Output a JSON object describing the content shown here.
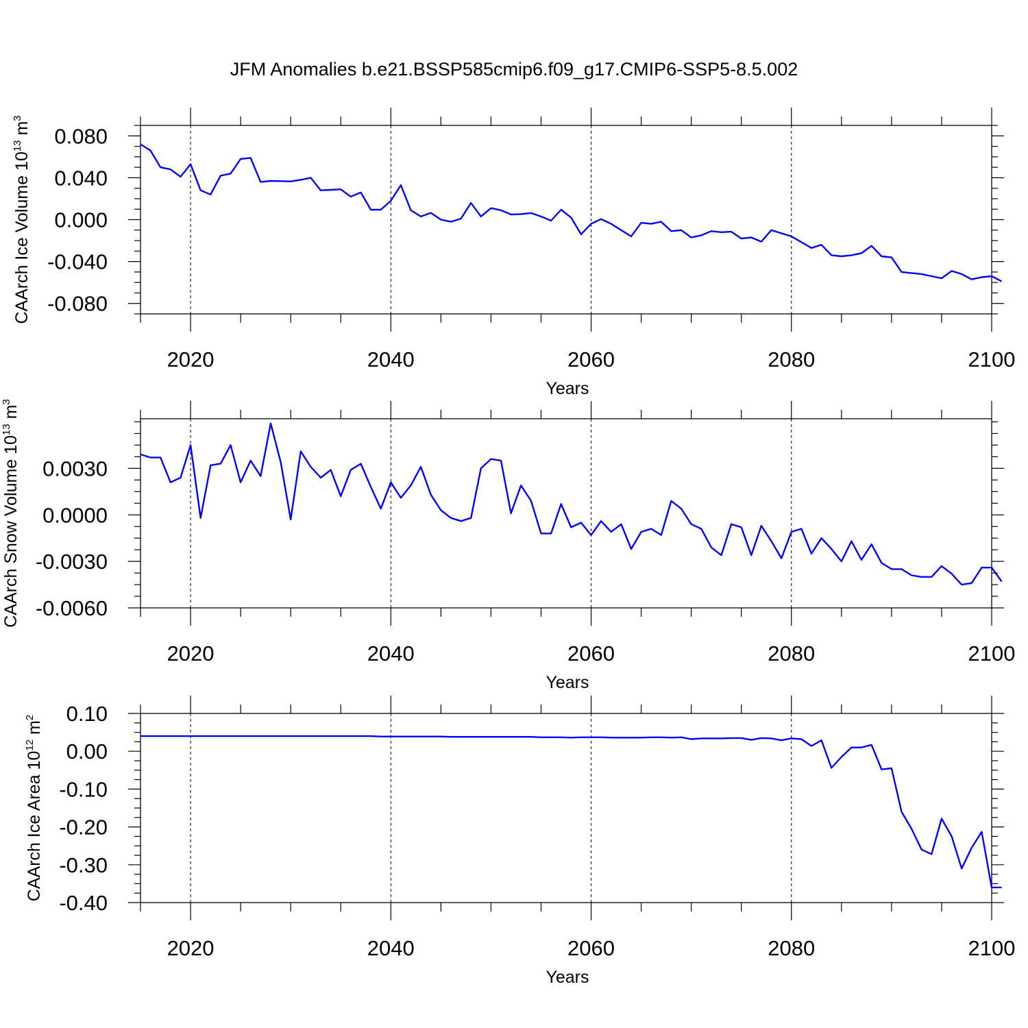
{
  "title": "JFM Anomalies b.e21.BSSP585cmip6.f09_g17.CMIP6-SSP5-8.5.002",
  "line_color": "#0000ff",
  "chart_data": [
    {
      "type": "line",
      "ylabel": {
        "main": "CAArch Ice Volume 10",
        "exp": "13",
        "unit": "m",
        "unit_exp": "3"
      },
      "xlabel": "Years",
      "xlim": [
        2015,
        2100
      ],
      "ylim": [
        -0.09,
        0.09
      ],
      "xticks": [
        2020,
        2040,
        2060,
        2080,
        2100
      ],
      "xtick_labels": [
        "2020",
        "2040",
        "2060",
        "2080",
        "2100"
      ],
      "yticks": [
        -0.08,
        -0.04,
        0.0,
        0.04,
        0.08
      ],
      "ytick_labels": [
        "-0.080",
        "-0.040",
        "0.000",
        "0.040",
        "0.080"
      ],
      "grid": "dashed vertical at major x ticks",
      "x_start": 2015,
      "values": [
        0.072,
        0.066,
        0.05,
        0.048,
        0.041,
        0.053,
        0.028,
        0.024,
        0.042,
        0.044,
        0.058,
        0.059,
        0.036,
        0.037,
        0.0368,
        0.0365,
        0.038,
        0.04,
        0.028,
        0.0285,
        0.029,
        0.022,
        0.026,
        0.0095,
        0.0095,
        0.018,
        0.033,
        0.009,
        0.003,
        0.0065,
        0.0,
        -0.002,
        0.001,
        0.016,
        0.003,
        0.011,
        0.009,
        0.005,
        0.0053,
        0.0063,
        0.003,
        -0.001,
        0.0095,
        0.002,
        -0.014,
        -0.004,
        0.0005,
        -0.004,
        -0.01,
        -0.016,
        -0.003,
        -0.004,
        -0.002,
        -0.011,
        -0.01,
        -0.017,
        -0.015,
        -0.011,
        -0.012,
        -0.0115,
        -0.018,
        -0.017,
        -0.021,
        -0.01,
        -0.013,
        -0.016,
        -0.0215,
        -0.027,
        -0.024,
        -0.034,
        -0.035,
        -0.034,
        -0.032,
        -0.025,
        -0.035,
        -0.036,
        -0.05,
        -0.051,
        -0.052,
        -0.054,
        -0.056,
        -0.049,
        -0.052,
        -0.057,
        -0.055,
        -0.054,
        -0.059
      ]
    },
    {
      "type": "line",
      "ylabel": {
        "main": "CAArch Snow Volume 10",
        "exp": "13",
        "unit": "m",
        "unit_exp": "3"
      },
      "xlabel": "Years",
      "xlim": [
        2015,
        2100
      ],
      "ylim": [
        -0.006,
        0.0062
      ],
      "xticks": [
        2020,
        2040,
        2060,
        2080,
        2100
      ],
      "xtick_labels": [
        "2020",
        "2040",
        "2060",
        "2080",
        "2100"
      ],
      "yticks": [
        -0.006,
        -0.003,
        0.0,
        0.003
      ],
      "ytick_labels": [
        "-0.0060",
        "-0.0030",
        "0.0000",
        "0.0030"
      ],
      "grid": "dashed vertical at major x ticks",
      "x_start": 2015,
      "values": [
        0.0039,
        0.0037,
        0.0037,
        0.0021,
        0.0024,
        0.0045,
        -0.0002,
        0.0032,
        0.0033,
        0.0045,
        0.0021,
        0.0035,
        0.0025,
        0.0059,
        0.0034,
        -0.0003,
        0.0041,
        0.0031,
        0.0024,
        0.0029,
        0.0012,
        0.0029,
        0.0033,
        0.0018,
        0.0004,
        0.0021,
        0.0011,
        0.0019,
        0.0031,
        0.0013,
        0.0003,
        -0.0002,
        -0.0004,
        -0.0002,
        0.003,
        0.0036,
        0.0035,
        0.0001,
        0.0019,
        0.0009,
        -0.0012,
        -0.0012,
        0.0007,
        -0.0008,
        -0.0005,
        -0.0013,
        -0.0004,
        -0.0011,
        -0.0006,
        -0.0022,
        -0.0011,
        -0.0009,
        -0.0013,
        0.0009,
        0.0004,
        -0.0006,
        -0.0009,
        -0.0021,
        -0.0026,
        -0.0006,
        -0.0008,
        -0.0026,
        -0.0007,
        -0.0017,
        -0.0028,
        -0.0011,
        -0.0009,
        -0.0025,
        -0.0015,
        -0.0022,
        -0.003,
        -0.0017,
        -0.0029,
        -0.0019,
        -0.0031,
        -0.0035,
        -0.0035,
        -0.0039,
        -0.004,
        -0.004,
        -0.0033,
        -0.0038,
        -0.0045,
        -0.0044,
        -0.0034,
        -0.0034,
        -0.0043
      ]
    },
    {
      "type": "line",
      "ylabel": {
        "main": "CAArch Ice Area 10",
        "exp": "12",
        "unit": "m",
        "unit_exp": "2"
      },
      "xlabel": "Years",
      "xlim": [
        2015,
        2100
      ],
      "ylim": [
        -0.4,
        0.1
      ],
      "xticks": [
        2020,
        2040,
        2060,
        2080,
        2100
      ],
      "xtick_labels": [
        "2020",
        "2040",
        "2060",
        "2080",
        "2100"
      ],
      "yticks": [
        -0.4,
        -0.3,
        -0.2,
        -0.1,
        0.0,
        0.1
      ],
      "ytick_labels": [
        "-0.40",
        "-0.30",
        "-0.20",
        "-0.10",
        "0.00",
        "0.10"
      ],
      "grid": "dashed vertical at major x ticks",
      "x_start": 2015,
      "values": [
        0.04,
        0.04,
        0.04,
        0.04,
        0.04,
        0.04,
        0.04,
        0.04,
        0.04,
        0.04,
        0.04,
        0.04,
        0.04,
        0.04,
        0.04,
        0.04,
        0.04,
        0.04,
        0.04,
        0.04,
        0.04,
        0.04,
        0.04,
        0.04,
        0.039,
        0.039,
        0.039,
        0.039,
        0.039,
        0.039,
        0.039,
        0.038,
        0.038,
        0.038,
        0.038,
        0.038,
        0.038,
        0.038,
        0.038,
        0.038,
        0.037,
        0.037,
        0.037,
        0.036,
        0.037,
        0.037,
        0.037,
        0.036,
        0.036,
        0.036,
        0.036,
        0.037,
        0.037,
        0.036,
        0.037,
        0.032,
        0.034,
        0.034,
        0.034,
        0.035,
        0.035,
        0.03,
        0.035,
        0.034,
        0.029,
        0.034,
        0.032,
        0.014,
        0.029,
        -0.044,
        -0.015,
        0.01,
        0.01,
        0.017,
        -0.048,
        -0.045,
        -0.16,
        -0.205,
        -0.26,
        -0.272,
        -0.178,
        -0.225,
        -0.31,
        -0.255,
        -0.213,
        -0.36,
        -0.36
      ]
    }
  ]
}
